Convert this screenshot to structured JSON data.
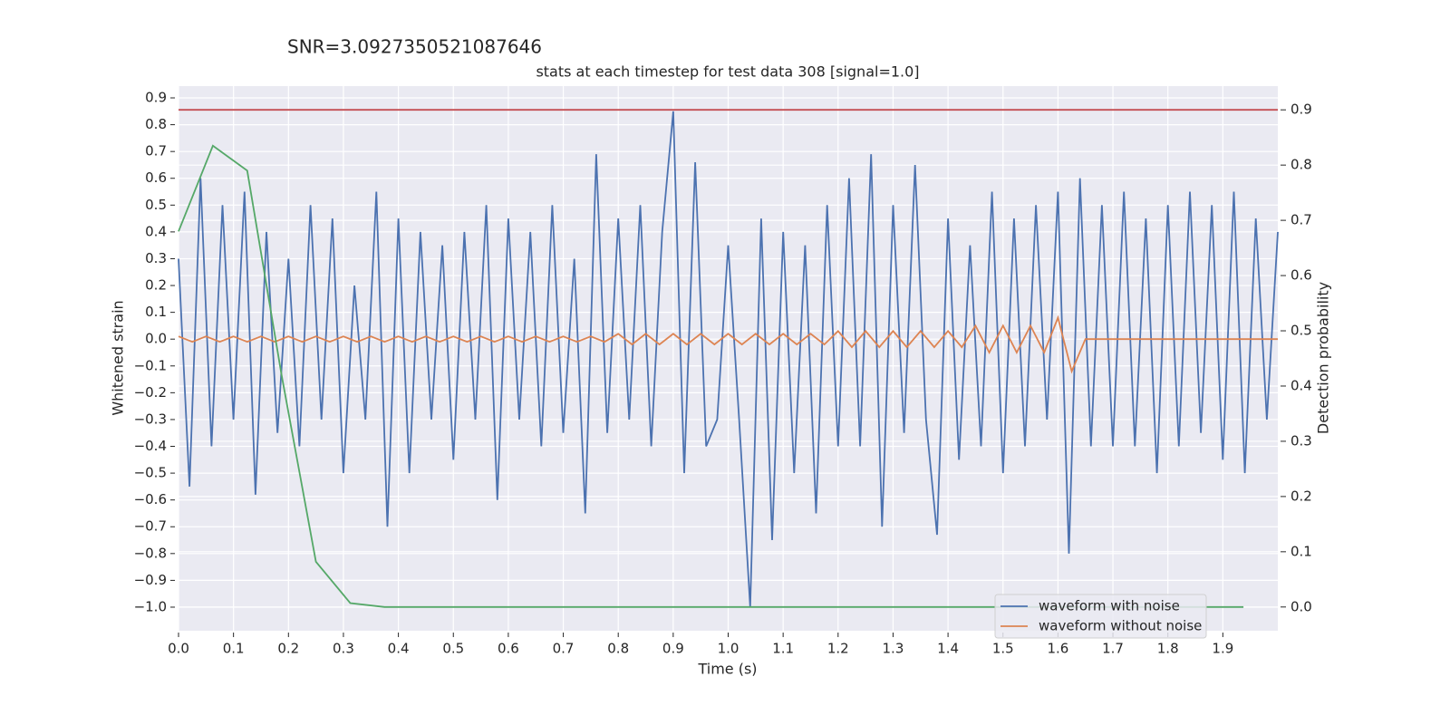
{
  "chart_data": {
    "type": "line",
    "suptitle": "SNR=3.0927350521087646",
    "title": "stats at each timestep for test data 308 [signal=1.0]",
    "xlabel": "Time (s)",
    "ylabel": "Whitened strain",
    "y2label": "Detection probability",
    "xlim": [
      0,
      2.0
    ],
    "ylim": [
      -1.088,
      0.944
    ],
    "y2lim": [
      -0.043,
      0.943
    ],
    "grid": true,
    "legend": "lower right",
    "xticks": [
      {
        "value": 0,
        "label": "0.0"
      },
      0.1,
      0.2,
      0.3,
      0.4,
      0.5,
      0.6,
      0.7,
      0.8,
      0.9,
      {
        "value": 1,
        "label": "1.0"
      },
      1.1,
      1.2,
      1.3,
      1.4,
      1.5,
      1.6,
      1.7,
      1.8,
      1.9
    ],
    "yticks": [
      {
        "value": -1,
        "label": "−1.0"
      },
      {
        "value": -0.9,
        "label": "−0.9"
      },
      {
        "value": -0.8,
        "label": "−0.8"
      },
      {
        "value": -0.7,
        "label": "−0.7"
      },
      {
        "value": -0.6,
        "label": "−0.6"
      },
      {
        "value": -0.5,
        "label": "−0.5"
      },
      {
        "value": -0.4,
        "label": "−0.4"
      },
      {
        "value": -0.3,
        "label": "−0.3"
      },
      {
        "value": -0.2,
        "label": "−0.2"
      },
      {
        "value": -0.1,
        "label": "−0.1"
      },
      {
        "value": 0,
        "label": "0.0"
      },
      0.1,
      0.2,
      0.3,
      0.4,
      0.5,
      0.6,
      0.7,
      0.8,
      0.9
    ],
    "y2ticks": [
      {
        "value": 0,
        "label": "0.0"
      },
      0.1,
      0.2,
      0.3,
      0.4,
      0.5,
      0.6,
      0.7,
      0.8,
      0.9
    ],
    "series": [
      {
        "name": "waveform with noise",
        "color": "#4c72b0",
        "x": [
          0,
          0.02,
          0.04,
          0.06,
          0.08,
          0.1,
          0.12,
          0.14,
          0.16,
          0.18,
          0.2,
          0.22,
          0.24,
          0.26,
          0.28,
          0.3,
          0.32,
          0.34,
          0.36,
          0.38,
          0.4,
          0.42,
          0.44,
          0.46,
          0.48,
          0.5,
          0.52,
          0.54,
          0.56,
          0.58,
          0.6,
          0.62,
          0.64,
          0.66,
          0.68,
          0.7,
          0.72,
          0.74,
          0.76,
          0.78,
          0.8,
          0.82,
          0.84,
          0.86,
          0.88,
          0.9,
          0.92,
          0.94,
          0.96,
          0.98,
          1.0,
          1.02,
          1.04,
          1.06,
          1.08,
          1.1,
          1.12,
          1.14,
          1.16,
          1.18,
          1.2,
          1.22,
          1.24,
          1.26,
          1.28,
          1.3,
          1.32,
          1.34,
          1.36,
          1.38,
          1.4,
          1.42,
          1.44,
          1.46,
          1.48,
          1.5,
          1.52,
          1.54,
          1.56,
          1.58,
          1.6,
          1.62,
          1.64,
          1.66,
          1.68,
          1.7,
          1.72,
          1.74,
          1.76,
          1.78,
          1.8,
          1.82,
          1.84,
          1.86,
          1.88,
          1.9,
          1.92,
          1.94,
          1.96,
          1.98,
          2.0
        ],
        "values": [
          0.3,
          -0.55,
          0.6,
          -0.4,
          0.5,
          -0.3,
          0.55,
          -0.58,
          0.4,
          -0.35,
          0.3,
          -0.4,
          0.5,
          -0.3,
          0.45,
          -0.5,
          0.2,
          -0.3,
          0.55,
          -0.7,
          0.45,
          -0.5,
          0.4,
          -0.3,
          0.35,
          -0.45,
          0.4,
          -0.3,
          0.5,
          -0.6,
          0.45,
          -0.3,
          0.4,
          -0.4,
          0.5,
          -0.35,
          0.3,
          -0.65,
          0.69,
          -0.35,
          0.45,
          -0.3,
          0.5,
          -0.4,
          0.4,
          0.85,
          -0.5,
          0.66,
          -0.4,
          -0.3,
          0.35,
          -0.3,
          -1.0,
          0.45,
          -0.75,
          0.4,
          -0.5,
          0.35,
          -0.65,
          0.5,
          -0.4,
          0.6,
          -0.4,
          0.69,
          -0.7,
          0.5,
          -0.35,
          0.65,
          -0.3,
          -0.73,
          0.45,
          -0.45,
          0.35,
          -0.4,
          0.55,
          -0.5,
          0.45,
          -0.4,
          0.5,
          -0.3,
          0.55,
          -0.8,
          0.6,
          -0.4,
          0.5,
          -0.4,
          0.55,
          -0.4,
          0.45,
          -0.5,
          0.5,
          -0.4,
          0.55,
          -0.35,
          0.5,
          -0.45,
          0.55,
          -0.5,
          0.45,
          -0.3,
          0.4
        ]
      },
      {
        "name": "waveform without noise",
        "color": "#dd8452",
        "x": [
          0,
          0.025,
          0.05,
          0.075,
          0.1,
          0.125,
          0.15,
          0.175,
          0.2,
          0.225,
          0.25,
          0.275,
          0.3,
          0.325,
          0.35,
          0.375,
          0.4,
          0.425,
          0.45,
          0.475,
          0.5,
          0.525,
          0.55,
          0.575,
          0.6,
          0.625,
          0.65,
          0.675,
          0.7,
          0.725,
          0.75,
          0.775,
          0.8,
          0.825,
          0.85,
          0.875,
          0.9,
          0.925,
          0.95,
          0.975,
          1.0,
          1.025,
          1.05,
          1.075,
          1.1,
          1.125,
          1.15,
          1.175,
          1.2,
          1.225,
          1.25,
          1.275,
          1.3,
          1.325,
          1.35,
          1.375,
          1.4,
          1.425,
          1.45,
          1.475,
          1.5,
          1.525,
          1.55,
          1.575,
          1.6,
          1.625,
          1.65,
          2.0
        ],
        "values": [
          0.01,
          -0.01,
          0.01,
          -0.01,
          0.01,
          -0.01,
          0.01,
          -0.01,
          0.01,
          -0.01,
          0.01,
          -0.01,
          0.01,
          -0.01,
          0.01,
          -0.01,
          0.01,
          -0.01,
          0.01,
          -0.01,
          0.01,
          -0.01,
          0.01,
          -0.01,
          0.01,
          -0.01,
          0.01,
          -0.01,
          0.01,
          -0.01,
          0.01,
          -0.01,
          0.02,
          -0.02,
          0.02,
          -0.02,
          0.02,
          -0.02,
          0.02,
          -0.02,
          0.02,
          -0.02,
          0.02,
          -0.02,
          0.02,
          -0.02,
          0.02,
          -0.02,
          0.03,
          -0.03,
          0.03,
          -0.03,
          0.03,
          -0.03,
          0.03,
          -0.03,
          0.03,
          -0.03,
          0.05,
          -0.05,
          0.05,
          -0.05,
          0.05,
          -0.05,
          0.08,
          -0.12,
          0,
          0
        ]
      }
    ],
    "probability": {
      "color": "#55a868",
      "axis": "y2",
      "x": [
        0,
        0.0625,
        0.125,
        0.1875,
        0.25,
        0.3125,
        0.375,
        0.4375,
        0.5,
        0.5625,
        0.625,
        0.6875,
        0.75,
        0.8125,
        0.875,
        0.9375,
        1.0,
        1.0625,
        1.125,
        1.1875,
        1.25,
        1.3125,
        1.375,
        1.4375,
        1.5,
        1.5625,
        1.625,
        1.6875,
        1.75,
        1.8125,
        1.875,
        1.9375
      ],
      "values": [
        0.68,
        0.835,
        0.79,
        0.42,
        0.082,
        0.007,
        0,
        0,
        0,
        0,
        0,
        0,
        0,
        0,
        0,
        0,
        0,
        0,
        0,
        0,
        0,
        0,
        0,
        0,
        0,
        0,
        0,
        0,
        0,
        0,
        0,
        0
      ]
    },
    "threshold": {
      "value": 0.9,
      "axis": "y2",
      "color": "#c44e52"
    }
  }
}
